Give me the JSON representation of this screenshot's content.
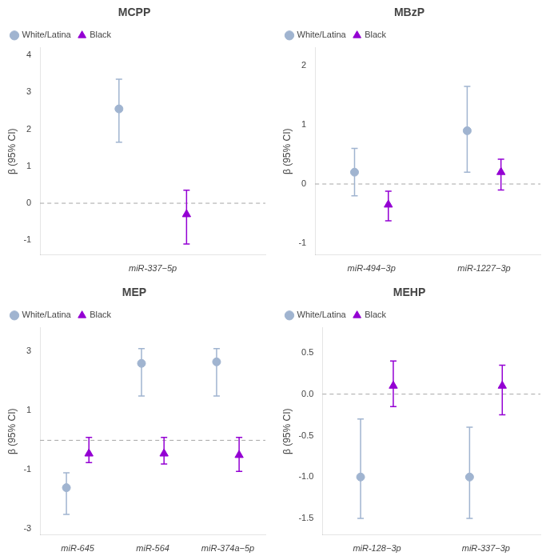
{
  "chart_data": [
    {
      "type": "scatter",
      "title": "MCPP",
      "y_label": "β (95% CI)",
      "categories": [
        "miR-337−5p"
      ],
      "series": [
        {
          "name": "White/Latina",
          "color": "#a0b4d0",
          "marker": "circle",
          "values": [
            2.55
          ],
          "ci_lo": [
            1.65
          ],
          "ci_hi": [
            3.35
          ]
        },
        {
          "name": "Black",
          "color": "#9400d3",
          "marker": "triangle",
          "values": [
            -0.3
          ],
          "ci_lo": [
            -1.1
          ],
          "ci_hi": [
            0.35
          ]
        }
      ],
      "ylim": [
        -1.4,
        4.2
      ],
      "yticks": [
        -1,
        0,
        1,
        2,
        3,
        4
      ],
      "reference_line": 0,
      "grid": false,
      "legend": "upper left"
    },
    {
      "type": "scatter",
      "title": "MBzP",
      "y_label": "β (95% CI)",
      "categories": [
        "miR-494−3p",
        "miR-1227−3p"
      ],
      "series": [
        {
          "name": "White/Latina",
          "color": "#a0b4d0",
          "marker": "circle",
          "values": [
            0.2,
            0.9
          ],
          "ci_lo": [
            -0.2,
            0.2
          ],
          "ci_hi": [
            0.6,
            1.65
          ]
        },
        {
          "name": "Black",
          "color": "#9400d3",
          "marker": "triangle",
          "values": [
            -0.35,
            0.2
          ],
          "ci_lo": [
            -0.62,
            -0.1
          ],
          "ci_hi": [
            -0.12,
            0.42
          ]
        }
      ],
      "ylim": [
        -1.2,
        2.3
      ],
      "yticks": [
        -1,
        0,
        1,
        2
      ],
      "reference_line": 0,
      "grid": false,
      "legend": "upper left"
    },
    {
      "type": "scatter",
      "title": "MEP",
      "y_label": "β (95% CI)",
      "categories": [
        "miR-645",
        "miR-564",
        "miR-374a−5p"
      ],
      "series": [
        {
          "name": "White/Latina",
          "color": "#a0b4d0",
          "marker": "circle",
          "values": [
            -1.6,
            2.6,
            2.65
          ],
          "ci_lo": [
            -2.5,
            1.5,
            1.5
          ],
          "ci_hi": [
            -1.1,
            3.1,
            3.1
          ]
        },
        {
          "name": "Black",
          "color": "#9400d3",
          "marker": "triangle",
          "values": [
            -0.45,
            -0.45,
            -0.5
          ],
          "ci_lo": [
            -0.75,
            -0.8,
            -1.05
          ],
          "ci_hi": [
            0.1,
            0.1,
            0.1
          ]
        }
      ],
      "ylim": [
        -3.2,
        3.8
      ],
      "yticks": [
        -3,
        -1,
        1,
        3
      ],
      "reference_line": 0,
      "grid": false,
      "legend": "upper left"
    },
    {
      "type": "scatter",
      "title": "MEHP",
      "y_label": "β (95% CI)",
      "categories": [
        "miR-128−3p",
        "miR-337−3p"
      ],
      "series": [
        {
          "name": "White/Latina",
          "color": "#a0b4d0",
          "marker": "circle",
          "values": [
            -1.0,
            -1.0
          ],
          "ci_lo": [
            -1.5,
            -1.5
          ],
          "ci_hi": [
            -0.3,
            -0.4
          ]
        },
        {
          "name": "Black",
          "color": "#9400d3",
          "marker": "triangle",
          "values": [
            0.1,
            0.1
          ],
          "ci_lo": [
            -0.15,
            -0.25
          ],
          "ci_hi": [
            0.4,
            0.35
          ]
        }
      ],
      "ylim": [
        -1.7,
        0.8
      ],
      "yticks": [
        -1.5,
        {
          "value": -1.0,
          "label": "-1.0"
        },
        -0.5,
        {
          "value": 0.0,
          "label": "0.0"
        },
        0.5
      ],
      "reference_line": 0,
      "grid": false,
      "legend": "upper left"
    }
  ]
}
